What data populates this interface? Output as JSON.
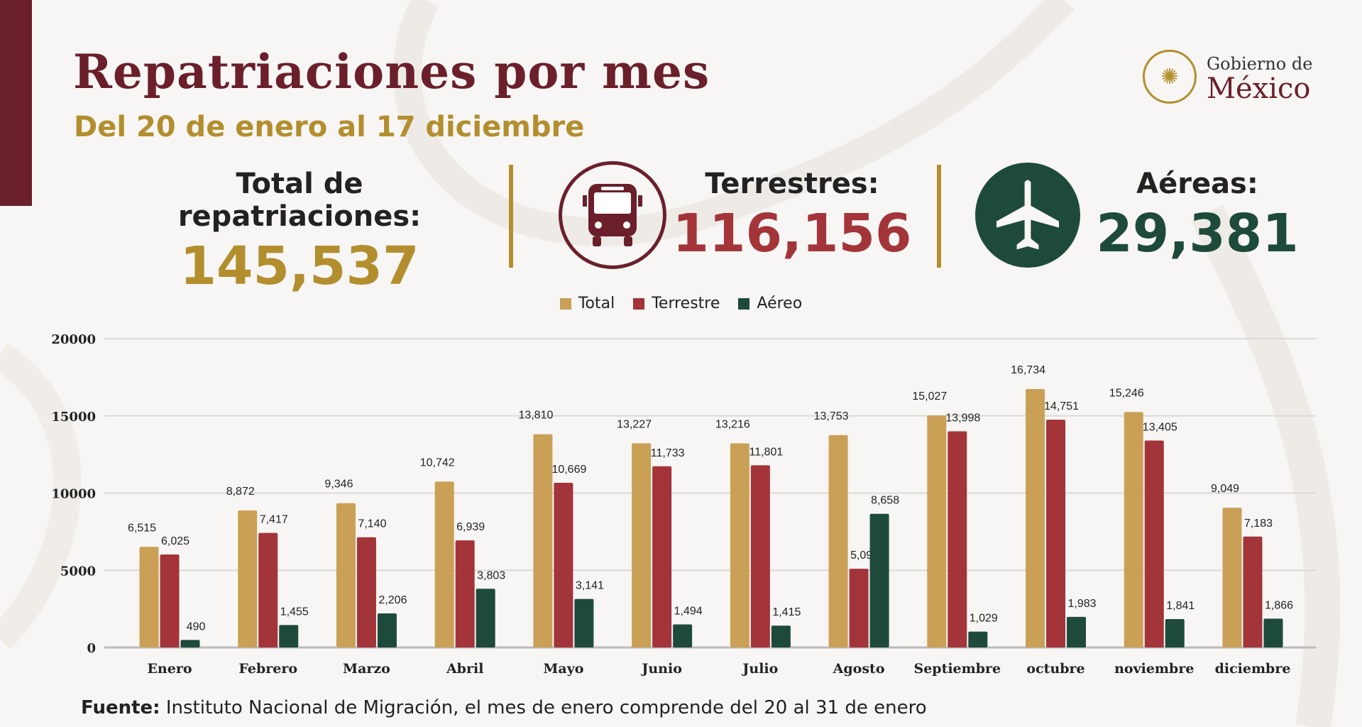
{
  "header": {
    "title": "Repatriaciones por mes",
    "subtitle": "Del 20 de enero al 17 diciembre",
    "logo_line1": "Gobierno de",
    "logo_line2": "México"
  },
  "stats": {
    "total_label": "Total de repatriaciones:",
    "total_value": "145,537",
    "terrestres_label": "Terrestres:",
    "terrestres_value": "116,156",
    "terrestres_icon": "bus-icon",
    "aereas_label": "Aéreas:",
    "aereas_value": "29,381",
    "aereas_icon": "airplane-icon"
  },
  "colors": {
    "total": "#c9a055",
    "terrestre": "#a3343a",
    "aereo": "#1e4a3c",
    "maroon": "#6b1f2a",
    "gold": "#b38e2e"
  },
  "chart_data": {
    "type": "bar",
    "categories": [
      "Enero",
      "Febrero",
      "Marzo",
      "Abril",
      "Mayo",
      "Junio",
      "Julio",
      "Agosto",
      "Septiembre",
      "octubre",
      "noviembre",
      "diciembre"
    ],
    "series": [
      {
        "name": "Total",
        "values": [
          6515,
          8872,
          9346,
          10742,
          13810,
          13227,
          13216,
          13753,
          15027,
          16734,
          15246,
          9049
        ]
      },
      {
        "name": "Terrestre",
        "values": [
          6025,
          7417,
          7140,
          6939,
          10669,
          11733,
          11801,
          5095,
          13998,
          14751,
          13405,
          7183
        ]
      },
      {
        "name": "Aéreo",
        "values": [
          490,
          1455,
          2206,
          3803,
          3141,
          1494,
          1415,
          8658,
          1029,
          1983,
          1841,
          1866
        ]
      }
    ],
    "yticks": [
      0,
      5000,
      10000,
      15000,
      20000
    ],
    "ylim": [
      0,
      20000
    ],
    "grid": true,
    "legend": "top-center"
  },
  "footer": {
    "source_label": "Fuente:",
    "source_text": " Instituto Nacional de Migración, el mes de enero comprende del 20 al 31 de enero"
  }
}
